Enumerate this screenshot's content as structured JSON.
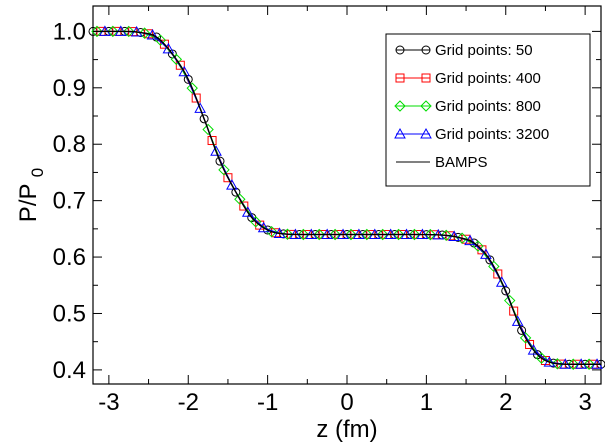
{
  "chart_data": {
    "type": "line",
    "xlabel": "z (fm)",
    "ylabel": "P/P",
    "ylabel_subscript": "0",
    "xlim": [
      -3.2,
      3.2
    ],
    "ylim": [
      0.375,
      1.045
    ],
    "xticks": [
      -3,
      -2,
      -1,
      0,
      1,
      2,
      3
    ],
    "xtick_labels": [
      "-3",
      "-2",
      "-1",
      "0",
      "1",
      "2",
      "3"
    ],
    "yticks": [
      0.4,
      0.5,
      0.6,
      0.7,
      0.8,
      0.9,
      1.0
    ],
    "ytick_labels": [
      "0.4",
      "0.5",
      "0.6",
      "0.7",
      "0.8",
      "0.9",
      "1.0"
    ],
    "legend_position": "top-right",
    "grid": false,
    "profile": {
      "z": [
        -3.2,
        -2.8,
        -2.6,
        -2.4,
        -2.2,
        -2.0,
        -1.8,
        -1.6,
        -1.4,
        -1.2,
        -1.0,
        -0.8,
        -0.6,
        -0.4,
        0.0,
        0.8,
        1.2,
        1.4,
        1.6,
        1.8,
        2.0,
        2.2,
        2.4,
        2.6,
        2.8,
        3.2
      ],
      "p": [
        1.0,
        1.0,
        0.998,
        0.99,
        0.96,
        0.915,
        0.845,
        0.77,
        0.715,
        0.67,
        0.648,
        0.641,
        0.64,
        0.64,
        0.64,
        0.64,
        0.639,
        0.635,
        0.625,
        0.595,
        0.54,
        0.47,
        0.427,
        0.412,
        0.41,
        0.41
      ]
    },
    "series": [
      {
        "name": "Grid points: 50",
        "color": "#000000",
        "marker": "circle",
        "step": 0.2,
        "offset": 0.0
      },
      {
        "name": "Grid points: 400",
        "color": "#ff0000",
        "marker": "square",
        "step": 0.2,
        "offset": 0.1
      },
      {
        "name": "Grid points: 800",
        "color": "#00dd00",
        "marker": "diamond",
        "step": 0.2,
        "offset": 0.05
      },
      {
        "name": "Grid points: 3200",
        "color": "#0000ff",
        "marker": "triangle",
        "step": 0.2,
        "offset": 0.15
      },
      {
        "name": "BAMPS",
        "color": "#000000",
        "marker": "none"
      }
    ]
  }
}
